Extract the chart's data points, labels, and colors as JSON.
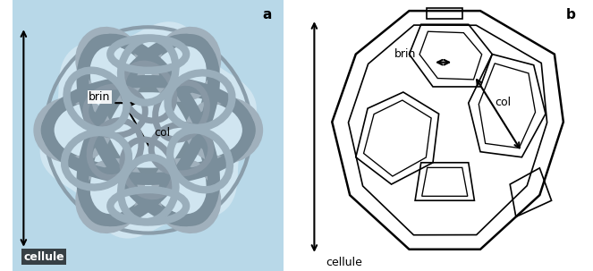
{
  "fig_width": 6.63,
  "fig_height": 3.03,
  "bg_color_a": "#b8d8e8",
  "bg_color_b": "#ffffff",
  "label_a": "a",
  "label_b": "b",
  "label_brin": "brin",
  "label_col": "col",
  "label_cellule": "cellule",
  "arrow_color": "#000000",
  "text_color": "#000000",
  "font_size_labels": 9,
  "font_size_ab": 11,
  "font_size_cellule": 9
}
